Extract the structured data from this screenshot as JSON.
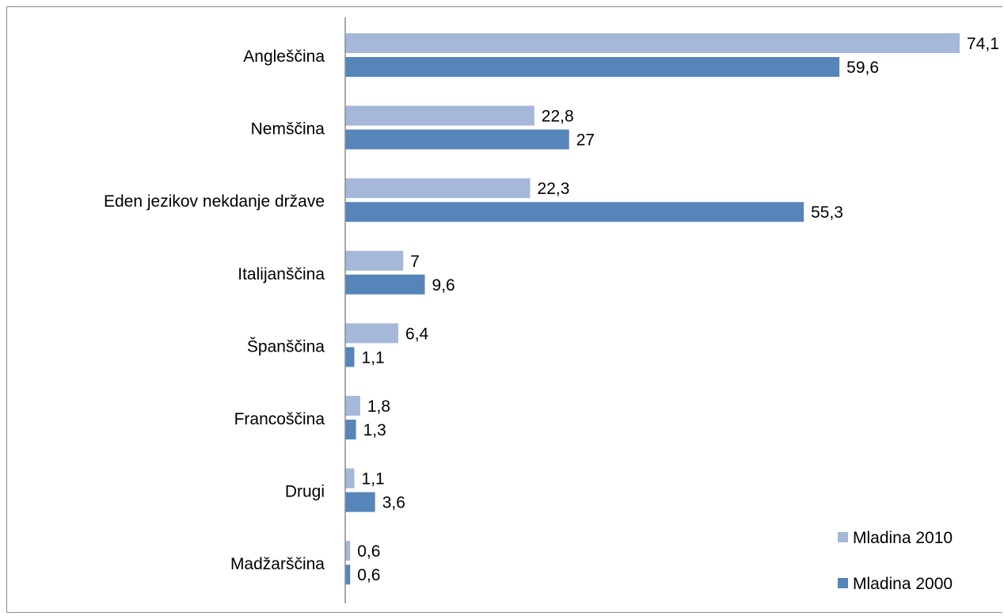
{
  "chart_data": {
    "type": "bar",
    "orientation": "horizontal",
    "categories": [
      "Angleščina",
      "Nemščina",
      "Eden jezikov nekdanje države",
      "Italijanščina",
      "Španščina",
      "Francoščina",
      "Drugi",
      "Madžarščina"
    ],
    "series": [
      {
        "name": "Mladina 2010",
        "color": "#a5b8da",
        "values": [
          74.1,
          22.8,
          22.3,
          7,
          6.4,
          1.8,
          1.1,
          0.6
        ],
        "labels": [
          "74,1",
          "22,8",
          "22,3",
          "7",
          "6,4",
          "1,8",
          "1,1",
          "0,6"
        ]
      },
      {
        "name": "Mladina 2000",
        "color": "#5585b9",
        "values": [
          59.6,
          27,
          55.3,
          9.6,
          1.1,
          1.3,
          3.6,
          0.6
        ],
        "labels": [
          "59,6",
          "27",
          "55,3",
          "9,6",
          "1,1",
          "1,3",
          "3,6",
          "0,6"
        ]
      }
    ],
    "xlim": [
      0,
      74.1
    ],
    "grid": false,
    "legend_position": "bottom-right"
  }
}
